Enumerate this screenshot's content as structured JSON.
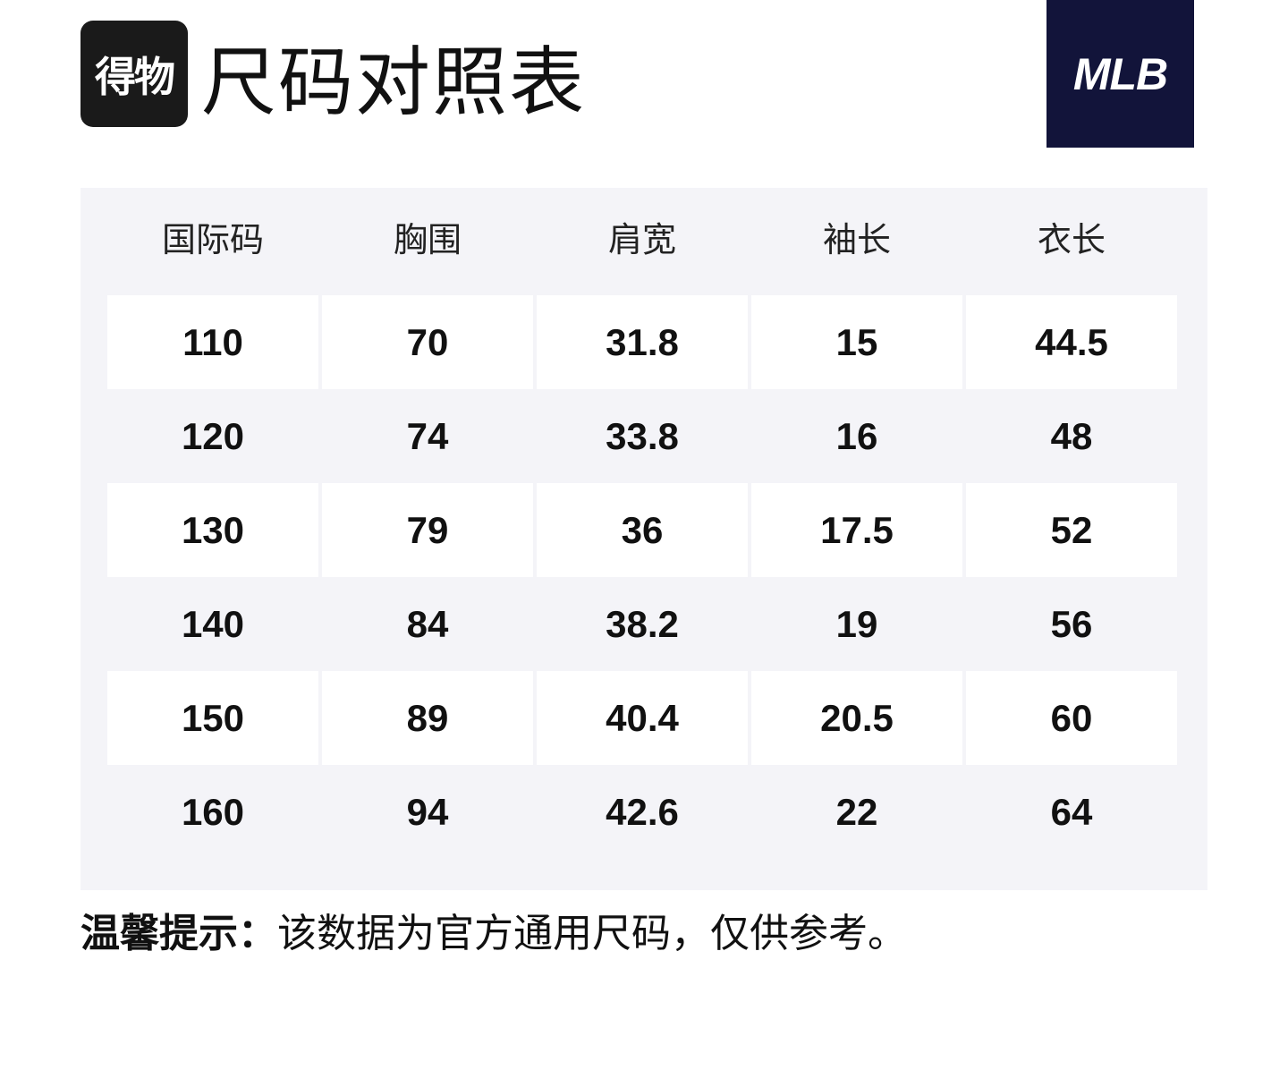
{
  "header": {
    "app_logo": "得物",
    "title": "尺码对照表",
    "brand_logo": "MLB"
  },
  "table": {
    "columns": [
      "国际码",
      "胸围",
      "肩宽",
      "袖长",
      "衣长"
    ],
    "rows": [
      [
        110,
        70,
        31.8,
        15,
        44.5
      ],
      [
        120,
        74,
        33.8,
        16,
        48
      ],
      [
        130,
        79,
        36,
        17.5,
        52
      ],
      [
        140,
        84,
        38.2,
        19,
        56
      ],
      [
        150,
        89,
        40.4,
        20.5,
        60
      ],
      [
        160,
        94,
        42.6,
        22,
        64
      ]
    ]
  },
  "note": {
    "label": "温馨提示：",
    "text": "该数据为官方通用尺码，仅供参考。"
  }
}
